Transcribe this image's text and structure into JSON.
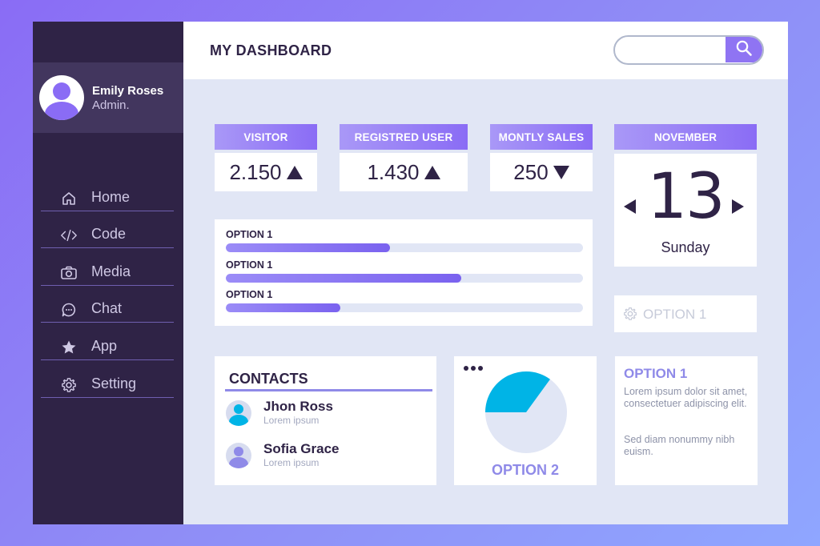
{
  "colors": {
    "accent": "#8a6cf5",
    "sidebar": "#2f2346",
    "content_bg": "#e1e6f5",
    "pie_primary": "#00b4e6",
    "pie_secondary": "#e1e6f5"
  },
  "header": {
    "title": "MY DASHBOARD",
    "search": {
      "value": "",
      "placeholder": "",
      "icon": "search-icon"
    }
  },
  "profile": {
    "name": "Emily Roses",
    "role": "Admin."
  },
  "sidebar": {
    "items": [
      {
        "label": "Home",
        "icon": "home-icon"
      },
      {
        "label": "Code",
        "icon": "code-icon"
      },
      {
        "label": "Media",
        "icon": "camera-icon"
      },
      {
        "label": "Chat",
        "icon": "chat-icon"
      },
      {
        "label": "App",
        "icon": "star-icon"
      },
      {
        "label": "Setting",
        "icon": "gear-icon"
      }
    ]
  },
  "stats": [
    {
      "label": "VISITOR",
      "value": "2.150",
      "trend": "up"
    },
    {
      "label": "REGISTRED USER",
      "value": "1.430",
      "trend": "up"
    },
    {
      "label": "MONTLY SALES",
      "value": "250",
      "trend": "down"
    }
  ],
  "calendar": {
    "month": "NOVEMBER",
    "day": "13",
    "weekday": "Sunday"
  },
  "progress": [
    {
      "label": "OPTION 1",
      "percent": 46
    },
    {
      "label": "OPTION 1",
      "percent": 66
    },
    {
      "label": "OPTION 1",
      "percent": 32
    }
  ],
  "option_input": {
    "placeholder": "OPTION 1",
    "icon": "gear-icon"
  },
  "contacts": {
    "title": "CONTACTS",
    "people": [
      {
        "name": "Jhon Ross",
        "sub": "Lorem ipsum",
        "color": "#00b4e6"
      },
      {
        "name": "Sofia Grace",
        "sub": "Lorem ipsum",
        "color": "#8f8ae8"
      }
    ]
  },
  "pie": {
    "label": "OPTION 2",
    "primary_fraction": 0.35
  },
  "text_panel": {
    "title": "OPTION 1",
    "paragraph1": "Lorem ipsum dolor sit amet, consectetuer adipiscing elit.",
    "paragraph2": "Sed diam nonummy nibh euism."
  }
}
